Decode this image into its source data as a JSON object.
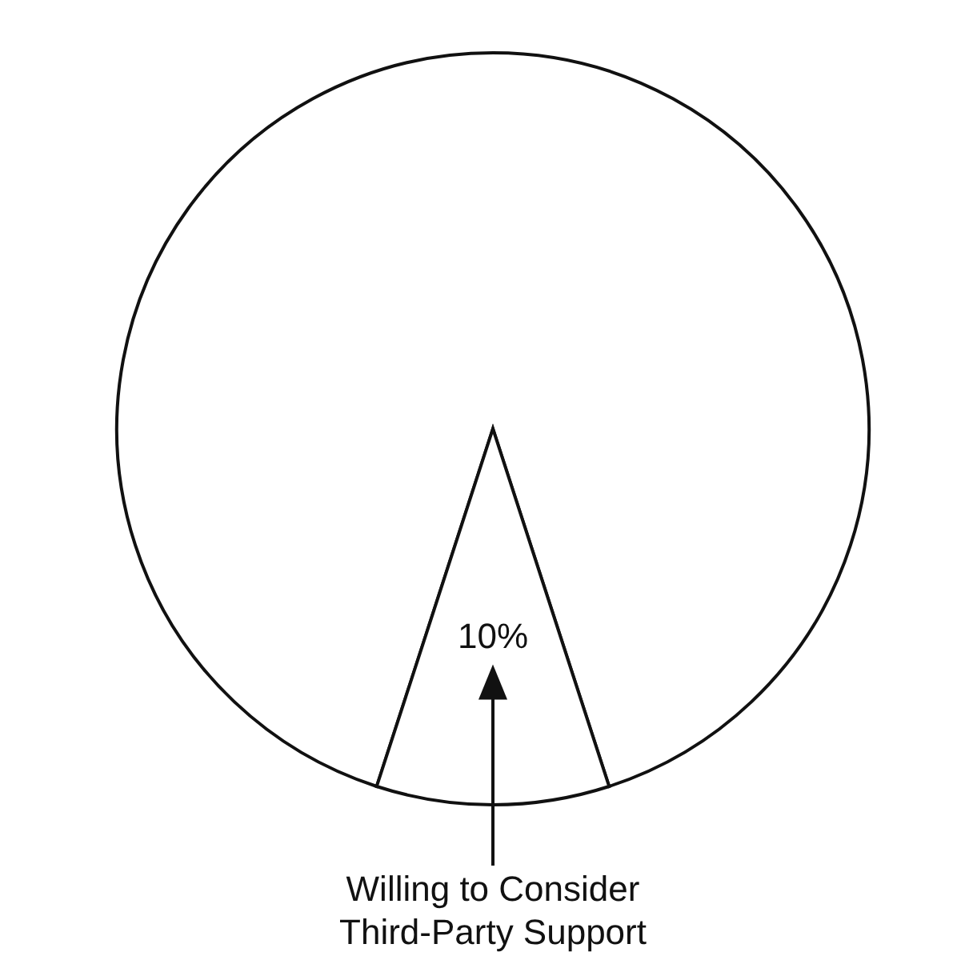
{
  "chart_data": {
    "type": "pie",
    "categories": [
      null,
      "Willing to Consider Third-Party Support"
    ],
    "values": [
      90,
      10
    ],
    "colors": [
      "#ffffff",
      "#ffffff"
    ],
    "value_labels": [
      null,
      "10%"
    ],
    "legend": false
  }
}
